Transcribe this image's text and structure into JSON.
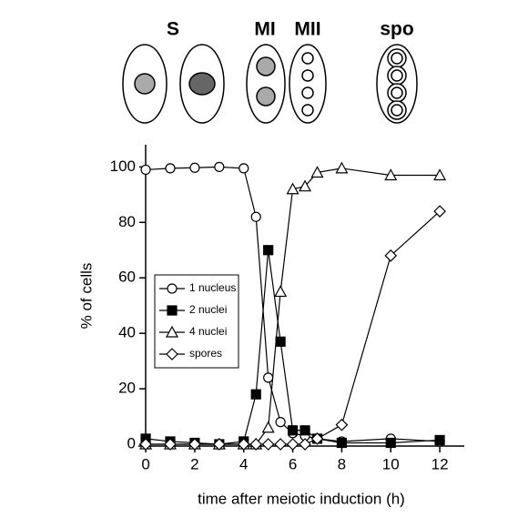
{
  "stages": [
    "S",
    "MI",
    "MII",
    "spo"
  ],
  "chart_data": {
    "type": "line",
    "xlabel": "time after meiotic induction (h)",
    "ylabel": "% of cells",
    "x": [
      0,
      1,
      2,
      3,
      4,
      4.5,
      5,
      5.5,
      6,
      6.5,
      7,
      8,
      10,
      12
    ],
    "series": [
      {
        "name": "1 nucleus",
        "color": "#000",
        "marker": "circle",
        "filled": false,
        "values": [
          99,
          99.5,
          99.7,
          100,
          99.5,
          82,
          24,
          8,
          4,
          3,
          2,
          1,
          2,
          1
        ]
      },
      {
        "name": "2 nuclei",
        "color": "#000",
        "marker": "square",
        "filled": true,
        "values": [
          2,
          1,
          0.5,
          0,
          1,
          18,
          70,
          37,
          5,
          5,
          2,
          0.5,
          0.5,
          1.5
        ]
      },
      {
        "name": "4 nuclei",
        "color": "#000",
        "marker": "triangle",
        "filled": false,
        "values": [
          0,
          0,
          0,
          0,
          0,
          0,
          6,
          55,
          92,
          93,
          98,
          99.5,
          97,
          97
        ]
      },
      {
        "name": "spores",
        "color": "#000",
        "marker": "diamond",
        "filled": false,
        "values": [
          0,
          0,
          0,
          0,
          0,
          0,
          0,
          0,
          0,
          0,
          2,
          7,
          68,
          84
        ]
      }
    ],
    "xlim": [
      -0.3,
      13
    ],
    "ylim": [
      0,
      108
    ],
    "xticks": [
      0,
      2,
      4,
      6,
      8,
      10,
      12
    ],
    "yticks": [
      0,
      20,
      40,
      60,
      80,
      100
    ],
    "grid": false,
    "legend": "center-left"
  }
}
